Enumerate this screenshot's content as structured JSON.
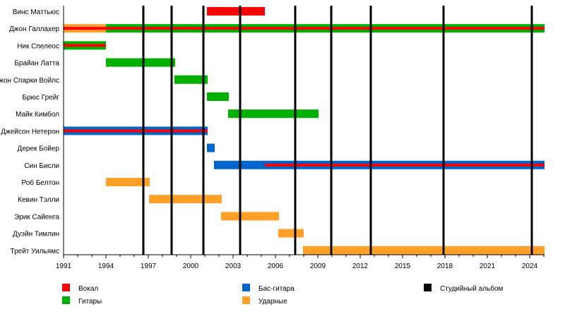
{
  "chart_data": {
    "type": "timeline",
    "title": "",
    "xlim": [
      1991,
      2025.05
    ],
    "x_major_ticks": [
      1991,
      1994,
      1997,
      2000,
      2003,
      2006,
      2009,
      2012,
      2015,
      2018,
      2021,
      2024
    ],
    "x_minor_step": 1,
    "grid": false,
    "colors": {
      "vocals": "#FF0000",
      "guitars": "#00B000",
      "bass": "#0066CC",
      "drums": "#FFA028",
      "album": "#000000"
    },
    "legend": {
      "placement": "bottom",
      "items": [
        {
          "key": "vocals",
          "label": "Вокал"
        },
        {
          "key": "guitars",
          "label": "Гитары"
        },
        {
          "key": "bass",
          "label": "Бас-гитара"
        },
        {
          "key": "drums",
          "label": "Ударные"
        },
        {
          "key": "album",
          "label": "Студийный альбом"
        }
      ]
    },
    "albums": [
      1996.65,
      1998.65,
      2000.9,
      2003.5,
      2007.4,
      2009.95,
      2012.75,
      2017.9,
      2024.15
    ],
    "members": [
      {
        "name": "Винс Маттьюс",
        "bars": [
          {
            "role": "vocals",
            "from": 2001.15,
            "to": 2005.25
          }
        ]
      },
      {
        "name": "Джон Галлахер",
        "bars": [
          {
            "role": "drums",
            "from": 1991,
            "to": 1994
          },
          {
            "role": "guitars",
            "from": 1994,
            "to": 2025.05
          },
          {
            "role": "vocals",
            "from": 1991,
            "to": 2025.05,
            "overlay": true
          }
        ]
      },
      {
        "name": "Ник Спелеос",
        "bars": [
          {
            "role": "guitars",
            "from": 1991,
            "to": 1994
          },
          {
            "role": "vocals",
            "from": 1991,
            "to": 1994,
            "overlay": true
          }
        ]
      },
      {
        "name": "Брайан Латта",
        "bars": [
          {
            "role": "guitars",
            "from": 1994,
            "to": 1998.9
          }
        ]
      },
      {
        "name": "Джон Спарки Войлс",
        "bars": [
          {
            "role": "guitars",
            "from": 1998.85,
            "to": 2001.2
          }
        ]
      },
      {
        "name": "Брюс Грейг",
        "bars": [
          {
            "role": "guitars",
            "from": 2001.15,
            "to": 2002.7
          }
        ]
      },
      {
        "name": "Майк Кимбол",
        "bars": [
          {
            "role": "guitars",
            "from": 2002.65,
            "to": 2009.05
          }
        ]
      },
      {
        "name": "Джейсон Нетерон",
        "bars": [
          {
            "role": "bass",
            "from": 1991,
            "to": 2001.2
          },
          {
            "role": "vocals",
            "from": 1991,
            "to": 2001.2,
            "overlay": true
          }
        ]
      },
      {
        "name": "Дерек Бойер",
        "bars": [
          {
            "role": "bass",
            "from": 2001.15,
            "to": 2001.7
          }
        ]
      },
      {
        "name": "Син Бисли",
        "bars": [
          {
            "role": "bass",
            "from": 2001.65,
            "to": 2025.05
          },
          {
            "role": "vocals",
            "from": 2005.25,
            "to": 2025.05,
            "overlay": true
          }
        ]
      },
      {
        "name": "Роб Белтон",
        "bars": [
          {
            "role": "drums",
            "from": 1994,
            "to": 1997.1
          }
        ]
      },
      {
        "name": "Кевин Тэлли",
        "bars": [
          {
            "role": "drums",
            "from": 1997.05,
            "to": 2002.2
          }
        ]
      },
      {
        "name": "Эрик Сайенга",
        "bars": [
          {
            "role": "drums",
            "from": 2002.15,
            "to": 2006.25
          }
        ]
      },
      {
        "name": "Дуэйн Тимлин",
        "bars": [
          {
            "role": "drums",
            "from": 2006.2,
            "to": 2008
          }
        ]
      },
      {
        "name": "Трейт Уильямс",
        "bars": [
          {
            "role": "drums",
            "from": 2007.95,
            "to": 2025.05
          }
        ]
      }
    ]
  }
}
